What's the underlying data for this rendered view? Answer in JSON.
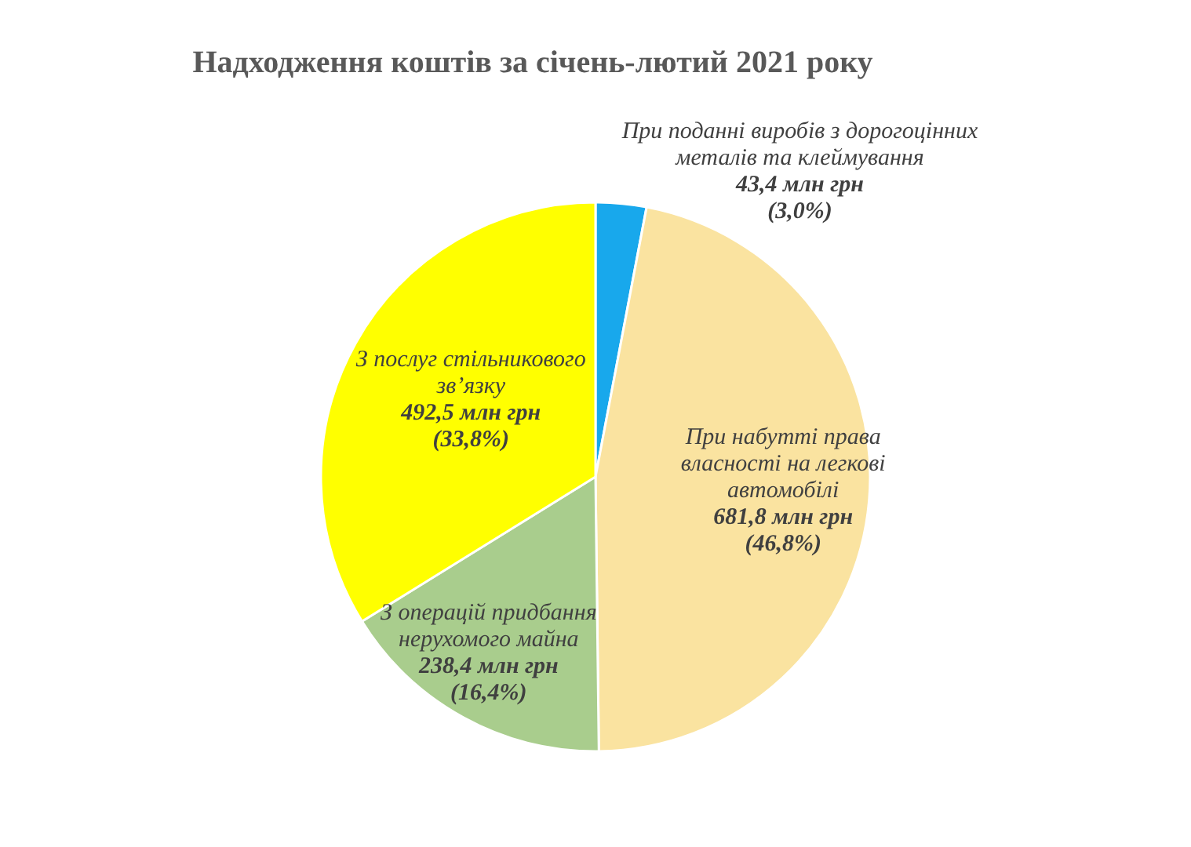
{
  "chart_data": {
    "type": "pie",
    "title": "Надходження коштів за січень-лютий 2021 року",
    "categories": [
      "При поданні виробів з дорогоцінних металів та клеймування",
      "При набутті права власності на легкові автомобілі",
      "З операцій придбання нерухомого майна",
      "З послуг стільникового зв’язку"
    ],
    "values": [
      43.4,
      681.8,
      238.4,
      492.5
    ],
    "colors": [
      "#18a8ec",
      "#fae3a0",
      "#a9cd8d",
      "#ffff00"
    ],
    "value_labels": [
      "43,4 млн грн (3,0%)",
      "681,8 млн грн (46,8%)",
      "238,4 млн грн (16,4%)",
      "492,5 млн грн (33,8%)"
    ]
  }
}
